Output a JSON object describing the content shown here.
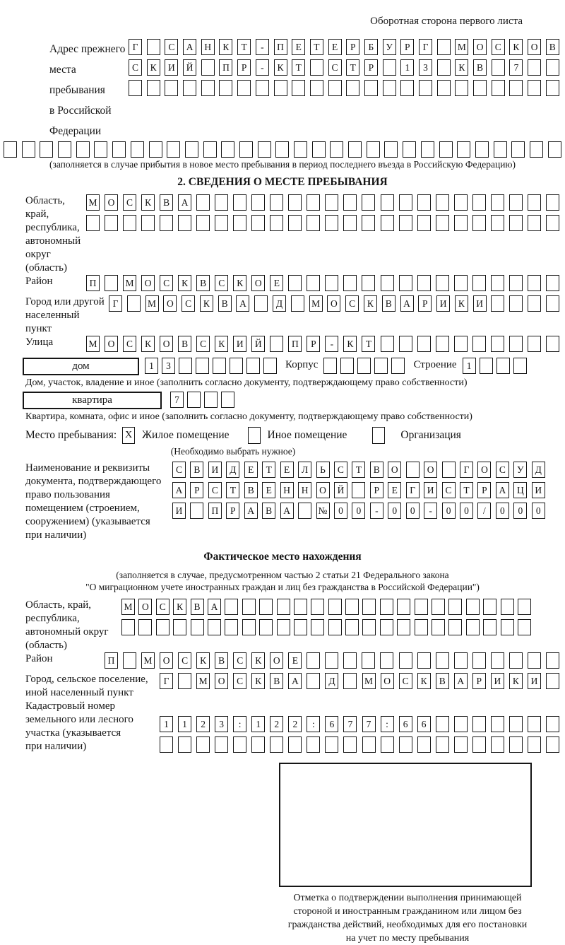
{
  "header": {
    "back_note": "Оборотная сторона первого листа"
  },
  "prev_address": {
    "label_lines": [
      "Адрес прежнего",
      "места пребывания",
      "в Российской",
      "Федерации"
    ],
    "r1": {
      "text": "Г САНКТ-ПЕТЕРБУРГ МОСКОВ",
      "len": 24
    },
    "r2": {
      "text": "СКИЙ ПР-КТ СТР 13 КВ 7",
      "len": 24
    },
    "r3": 24,
    "r4": 31,
    "footnote": "(заполняется в случае прибытия в новое место пребывания в период последнего въезда в Российскую Федерацию)"
  },
  "section2": {
    "title": "2. СВЕДЕНИЯ О МЕСТЕ ПРЕБЫВАНИЯ",
    "region": {
      "label_lines": [
        "Область, край,",
        "республика,",
        "автономный",
        "округ (область)"
      ],
      "r1": {
        "text": "МОСКВА",
        "len": 26
      },
      "r2": 26
    },
    "district": {
      "label": "Район",
      "r1": {
        "text": "П МОСКВСКОЕ",
        "len": 26
      }
    },
    "city": {
      "label_lines": [
        "Город или другой",
        "населенный пункт"
      ],
      "r1": {
        "text": "Г МОСКВА Д МОСКВАРИКИ",
        "len": 25
      }
    },
    "street": {
      "label": "Улица",
      "r1": {
        "text": "МОСКОВСКИЙ ПР-КТ",
        "len": 26
      }
    },
    "house_row": {
      "house_label": "дом",
      "house_cells": {
        "text": "13",
        "len": 8
      },
      "korpus_label": "Корпус",
      "korpus_cells": 5,
      "stroenie_label": "Строение",
      "stroenie_cells": {
        "text": "1",
        "len": 4
      }
    },
    "house_note": "Дом, участок, владение и иное (заполнить согласно документу, подтверждающему право собственности)",
    "flat_row": {
      "label": "квартира",
      "cells": {
        "text": "7",
        "len": 4
      }
    },
    "flat_note": "Квартира, комната, офис и иное (заполнить согласно документу, подтверждающему право собственности)",
    "stay": {
      "label": "Место пребывания:",
      "checked_mark": "X",
      "opt1": "Жилое помещение",
      "opt2": "Иное помещение",
      "opt3": "Организация",
      "hint": "(Необходимо выбрать нужное)"
    },
    "doc": {
      "label_lines": [
        "Наименование и реквизиты",
        "документа, подтверждающего",
        "право пользования",
        "помещением (строением,",
        "сооружением) (указывается",
        "при наличии)"
      ],
      "r1": {
        "text": "СВИДЕТЕЛЬСТВО О ГОСУД",
        "len": 21
      },
      "r2": {
        "text": "АРСТВЕННОЙ РЕГИСТРАЦИ",
        "len": 21
      },
      "r3": {
        "text": "И ПРАВА №00-00-00/000",
        "len": 21
      }
    }
  },
  "actual_location": {
    "title": "Фактическое место нахождения",
    "note_lines": [
      "(заполняется в случае, предусмотренном частью 2 статьи 21 Федерального закона",
      "\"О миграционном учете иностранных граждан и лиц без гражданства в Российской Федерации\")"
    ],
    "region": {
      "label_lines": [
        "Область, край,",
        "республика,",
        "автономный округ",
        "(область)"
      ],
      "r1": {
        "text": "МОСКВА",
        "len": 24
      },
      "r2": 24
    },
    "district": {
      "label": "Район",
      "r1": {
        "text": "П МОСКВСКОЕ",
        "len": 25
      }
    },
    "city": {
      "label_lines": [
        "Город, сельское поселение,",
        "иной населенный пункт"
      ],
      "r1": {
        "text": "Г МОСКВА Д МОСКВАРИКИ",
        "len": 22
      }
    },
    "cadastre": {
      "label_lines": [
        "Кадастровый номер",
        "земельного или лесного",
        "участка (указывается",
        "при наличии)"
      ],
      "r1": {
        "text": "1123:122:677:66",
        "len": 22
      },
      "r2": 22
    },
    "stamp_note_lines": [
      "Отметка о подтверждении выполнения принимающей",
      "стороной и иностранным гражданином или лицом без",
      "гражданства действий, необходимых для его постановки",
      "на учет по месту пребывания"
    ]
  }
}
